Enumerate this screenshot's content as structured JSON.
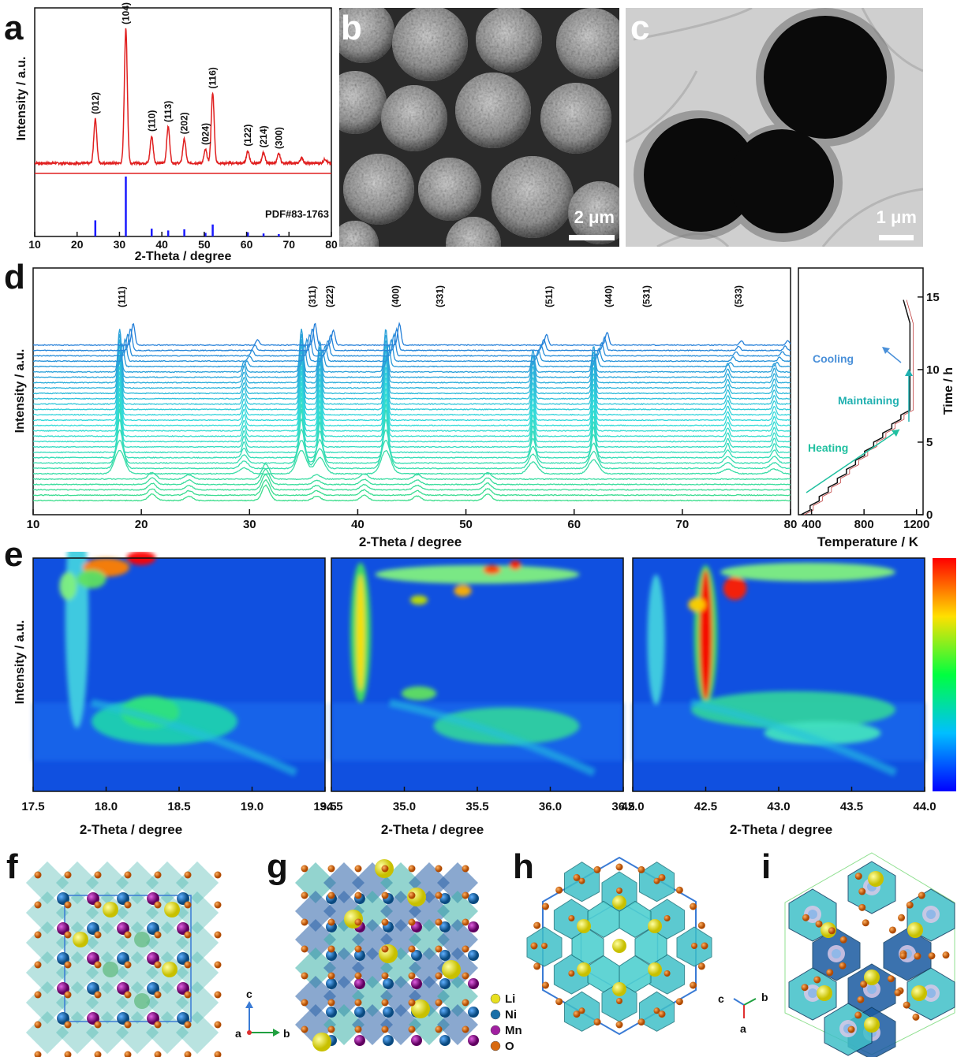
{
  "panel_labels": {
    "a": "a",
    "b": "b",
    "c": "c",
    "d": "d",
    "e": "e",
    "f": "f",
    "g": "g",
    "h": "h",
    "i": "i"
  },
  "scale_bars": {
    "b": "2 μm",
    "c": "1 μm"
  },
  "colors": {
    "measured": "#e02020",
    "reference": "#1a1aff",
    "heat_low": "#0033cc",
    "heat_high": "#ff0000"
  },
  "chart_data": [
    {
      "id": "a",
      "type": "line",
      "xlabel": "2-Theta / degree",
      "ylabel": "Intensity / a.u.",
      "xlim": [
        10,
        80
      ],
      "x_ticks": [
        "10",
        "20",
        "30",
        "40",
        "50",
        "60",
        "70",
        "80"
      ],
      "reference_label": "PDF#83-1763",
      "series": [
        {
          "peaks": [
            {
              "x": 24.3,
              "h": 0.33,
              "label": "(012)"
            },
            {
              "x": 31.5,
              "h": 1.0,
              "label": "(104)"
            },
            {
              "x": 37.6,
              "h": 0.2,
              "label": "(110)"
            },
            {
              "x": 41.5,
              "h": 0.27,
              "label": "(113)"
            },
            {
              "x": 45.3,
              "h": 0.18,
              "label": "(202)"
            },
            {
              "x": 50.3,
              "h": 0.1,
              "label": "(024)"
            },
            {
              "x": 52.0,
              "h": 0.52,
              "label": "(116)"
            },
            {
              "x": 60.3,
              "h": 0.09,
              "label": "(122)"
            },
            {
              "x": 64.0,
              "h": 0.08,
              "label": "(214)"
            },
            {
              "x": 67.6,
              "h": 0.07,
              "label": "(300)"
            },
            {
              "x": 73.0,
              "h": 0.04,
              "label": ""
            },
            {
              "x": 78.5,
              "h": 0.03,
              "label": ""
            }
          ]
        },
        {
          "sticks": [
            [
              24.3,
              0.27
            ],
            [
              31.5,
              1.0
            ],
            [
              37.6,
              0.13
            ],
            [
              41.5,
              0.1
            ],
            [
              45.3,
              0.12
            ],
            [
              50.3,
              0.06
            ],
            [
              52.0,
              0.2
            ],
            [
              60.3,
              0.07
            ],
            [
              64.0,
              0.05
            ],
            [
              67.6,
              0.04
            ]
          ]
        }
      ]
    },
    {
      "id": "d",
      "type": "line",
      "xlabel": "2-Theta / degree",
      "ylabel": "Intensity / a.u.",
      "xlim": [
        10,
        80
      ],
      "x_ticks": [
        "10",
        "20",
        "30",
        "40",
        "50",
        "60",
        "70",
        "80"
      ],
      "peak_labels": [
        {
          "x": 18.2,
          "label": "(111)"
        },
        {
          "x": 35.8,
          "label": "(311)"
        },
        {
          "x": 37.4,
          "label": "(222)"
        },
        {
          "x": 43.5,
          "label": "(400)"
        },
        {
          "x": 47.6,
          "label": "(331)"
        },
        {
          "x": 57.7,
          "label": "(511)"
        },
        {
          "x": 63.2,
          "label": "(440)"
        },
        {
          "x": 66.7,
          "label": "(531)"
        },
        {
          "x": 75.2,
          "label": "(533)"
        }
      ],
      "n_scans": 30
    },
    {
      "id": "d-temperature",
      "type": "line",
      "xlabel": "Temperature / K",
      "ylabel": "Time / h",
      "xlim": [
        300,
        1250
      ],
      "ylim": [
        0,
        17
      ],
      "x_ticks": [
        "400",
        "800",
        "1200"
      ],
      "y_ticks": [
        "0",
        "5",
        "10",
        "15"
      ],
      "annotations": [
        "Heating",
        "Maintaining",
        "Cooling"
      ],
      "series": [
        {
          "x": [
            320,
            1150,
            1150,
            1100
          ],
          "y": [
            0,
            7.5,
            13.2,
            14.8
          ]
        }
      ]
    },
    {
      "id": "e",
      "type": "heatmap",
      "ylabel": "Intensity / a.u.",
      "panels": [
        {
          "xlabel": "2-Theta / degree",
          "xlim": [
            17.5,
            19.5
          ],
          "x_ticks": [
            "17.5",
            "18.0",
            "18.5",
            "19.0",
            "19.5"
          ]
        },
        {
          "xlabel": "2-Theta / degree",
          "xlim": [
            34.5,
            36.5
          ],
          "x_ticks": [
            "34.5",
            "35.0",
            "35.5",
            "36.0",
            "36.5"
          ]
        },
        {
          "xlabel": "2-Theta / degree",
          "xlim": [
            42.0,
            44.0
          ],
          "x_ticks": [
            "42.0",
            "42.5",
            "43.0",
            "43.5",
            "44.0"
          ]
        }
      ]
    }
  ],
  "legend_g": [
    {
      "label": "Li",
      "color": "#e8e020"
    },
    {
      "label": "Ni",
      "color": "#1a6fa8"
    },
    {
      "label": "Mn",
      "color": "#a020a0"
    },
    {
      "label": "O",
      "color": "#d86a10"
    }
  ],
  "axes_f": {
    "c": "c",
    "a": "a",
    "b": "b"
  },
  "axes_h": {
    "c": "c",
    "a": "a",
    "b": "b"
  }
}
